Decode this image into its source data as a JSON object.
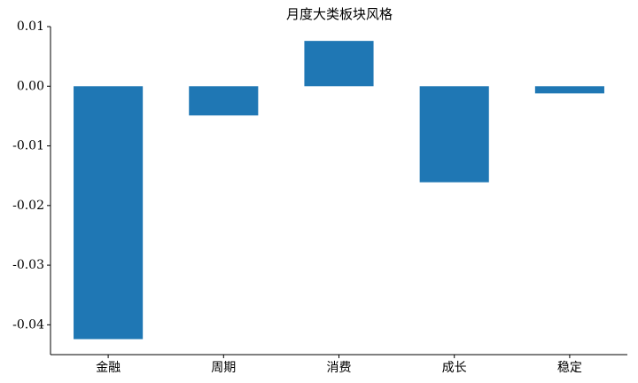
{
  "chart_data": {
    "type": "bar",
    "title": "月度大类板块风格",
    "categories": [
      "金融",
      "周期",
      "消费",
      "成长",
      "稳定"
    ],
    "values": [
      -0.0424,
      -0.0049,
      0.0076,
      -0.0161,
      -0.0012
    ],
    "color": "#1f77b4",
    "ylim": [
      -0.045,
      0.01
    ],
    "yticks": [
      0.01,
      {
        "value": 0,
        "label": "0.00"
      },
      -0.01,
      -0.02,
      -0.03,
      -0.04
    ],
    "grid": false
  }
}
